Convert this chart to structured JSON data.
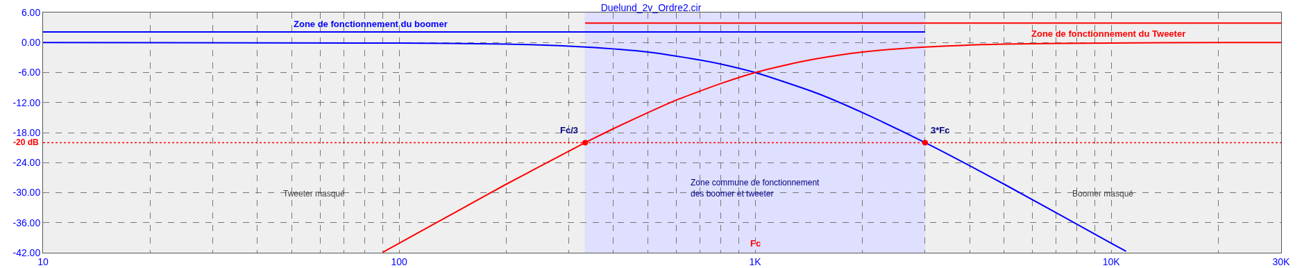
{
  "chart_data": {
    "type": "line",
    "title": "Duelund_2v_Ordre2.cir",
    "series": [
      {
        "color": "#0000ff",
        "x": [
          10,
          100,
          200,
          333,
          500,
          700,
          800,
          1000,
          1200,
          1500,
          2000,
          3000,
          5000,
          10000,
          11000
        ],
        "values": [
          0,
          -0.1,
          -0.3,
          -0.9,
          -1.9,
          -3.5,
          -4.3,
          -6,
          -7.8,
          -10.2,
          -14,
          -20,
          -28.3,
          -40.1,
          -41.7
        ]
      },
      {
        "color": "#ff0000",
        "x": [
          90,
          100,
          150,
          200,
          300,
          333,
          400,
          500,
          600,
          700,
          800,
          1000,
          1200,
          1500,
          2000,
          3000,
          5000,
          10000,
          20000,
          30000
        ],
        "values": [
          -41.9,
          -40.1,
          -33.2,
          -28.3,
          -21.7,
          -20,
          -17.2,
          -14,
          -11.5,
          -9.7,
          -8.2,
          -6,
          -4.6,
          -3.2,
          -1.9,
          -0.9,
          -0.3,
          -0.1,
          0,
          0
        ]
      },
      {
        "color": "#0000ff",
        "x": [
          10,
          3000
        ],
        "values": [
          2.1,
          2.1
        ]
      },
      {
        "color": "#ff0000",
        "x": [
          333,
          30000
        ],
        "values": [
          3.9,
          3.9
        ]
      },
      {
        "type": "scatter",
        "color": "#ff0000",
        "marker": "circle",
        "x": [
          333,
          3000
        ],
        "values": [
          -20,
          -20
        ]
      }
    ],
    "log": "x",
    "xlim": [
      10,
      30000
    ],
    "xticks": [
      {
        "value": 10,
        "label": "10"
      },
      {
        "value": 20,
        "label": null
      },
      {
        "value": 30,
        "label": null
      },
      {
        "value": 40,
        "label": null
      },
      {
        "value": 50,
        "label": null
      },
      {
        "value": 60,
        "label": null
      },
      {
        "value": 70,
        "label": null
      },
      {
        "value": 80,
        "label": null
      },
      {
        "value": 90,
        "label": null
      },
      {
        "value": 100,
        "label": "100"
      },
      {
        "value": 200,
        "label": null
      },
      {
        "value": 300,
        "label": null
      },
      {
        "value": 400,
        "label": null
      },
      {
        "value": 500,
        "label": null
      },
      {
        "value": 600,
        "label": null
      },
      {
        "value": 700,
        "label": null
      },
      {
        "value": 800,
        "label": null
      },
      {
        "value": 900,
        "label": null
      },
      {
        "value": 1000,
        "label": "1K"
      },
      {
        "value": 2000,
        "label": null
      },
      {
        "value": 3000,
        "label": null
      },
      {
        "value": 4000,
        "label": null
      },
      {
        "value": 5000,
        "label": null
      },
      {
        "value": 6000,
        "label": null
      },
      {
        "value": 7000,
        "label": null
      },
      {
        "value": 8000,
        "label": null
      },
      {
        "value": 9000,
        "label": null
      },
      {
        "value": 10000,
        "label": "10K"
      },
      {
        "value": 20000,
        "label": null
      },
      {
        "value": 30000,
        "label": "30K"
      }
    ],
    "ylim": [
      -42,
      6
    ],
    "yticks": [
      {
        "value": 6,
        "label": "6.00"
      },
      {
        "value": 0,
        "label": "0.00"
      },
      {
        "value": -6,
        "label": "-6.00"
      },
      {
        "value": -12,
        "label": "-12.00"
      },
      {
        "value": -18,
        "label": "-18.00"
      },
      {
        "value": -24,
        "label": "-24.00"
      },
      {
        "value": -30,
        "label": "-30.00"
      },
      {
        "value": -36,
        "label": "-36.00"
      },
      {
        "value": -42,
        "label": "-42.00"
      }
    ],
    "grid": true,
    "line_style": "solid",
    "marker": "none",
    "ref_lines": [
      {
        "axis": "y",
        "value": -20,
        "label": "-20 dB",
        "color": "#ff0000",
        "line_style": "dotted"
      }
    ],
    "bands": [
      {
        "axis": "x",
        "from": 10,
        "to": 333,
        "label": "Tweeter masqué",
        "color": "#808080"
      },
      {
        "axis": "x",
        "from": 333,
        "to": 3000,
        "label": "Zone commune de fonctionnement\ndes boomer et tweeter",
        "color": "#0000ff"
      },
      {
        "axis": "x",
        "from": 3000,
        "to": 30000,
        "label": "Boomer masqué",
        "color": "#808080"
      }
    ],
    "annotations": [
      {
        "text": "Zone de fonctionnement du boomer",
        "x": 83,
        "y": 2.1
      },
      {
        "text": "Zone de fonctionnement du Tweeter",
        "x": 9800,
        "y": 3.9
      },
      {
        "text": "Fc/3",
        "x": 333,
        "y": -20
      },
      {
        "text": "3*Fc",
        "x": 3000,
        "y": -20
      },
      {
        "text": "Fc",
        "x": 1000,
        "y": -42
      }
    ]
  }
}
